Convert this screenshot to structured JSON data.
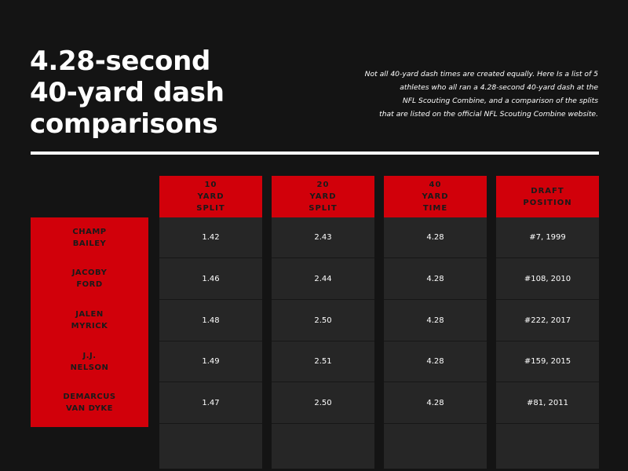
{
  "title_lines": [
    "4.28-second",
    "40-yard dash",
    "comparisons"
  ],
  "description_lines": [
    "Not all 40-yard dash times are created equally. Here Is a list of 5",
    "athletes who all ran a 4.28-second 40-yard dash at the",
    "NFL Scouting Combine, and a comparison of the splits",
    "that are listed  on the official NFL Scouting Combine website."
  ],
  "colors": {
    "background": "#141414",
    "accent_red": "#d1000a",
    "cell_bg": "#262626",
    "text_white": "#ffffff",
    "text_dark": "#1a1a1a"
  },
  "chart_data": {
    "type": "table",
    "columns": [
      {
        "lines": [
          "10",
          "YARD",
          "SPLIT"
        ]
      },
      {
        "lines": [
          "20",
          "YARD",
          "SPLIT"
        ]
      },
      {
        "lines": [
          "40",
          "YARD",
          "TIME"
        ]
      },
      {
        "lines": [
          "DRAFT",
          "POSITION"
        ]
      }
    ],
    "rows": [
      {
        "name_lines": [
          "CHAMP",
          "BAILEY"
        ],
        "values": [
          "1.42",
          "2.43",
          "4.28",
          "#7, 1999"
        ]
      },
      {
        "name_lines": [
          "JACOBY",
          "FORD"
        ],
        "values": [
          "1.46",
          "2.44",
          "4.28",
          "#108, 2010"
        ]
      },
      {
        "name_lines": [
          "JALEN",
          "MYRICK"
        ],
        "values": [
          "1.48",
          "2.50",
          "4.28",
          "#222, 2017"
        ]
      },
      {
        "name_lines": [
          "J.J.",
          "NELSON"
        ],
        "values": [
          "1.49",
          "2.51",
          "4.28",
          "#159, 2015"
        ]
      },
      {
        "name_lines": [
          "DEMARCUS",
          "VAN DYKE"
        ],
        "values": [
          "1.47",
          "2.50",
          "4.28",
          "#81, 2011"
        ]
      }
    ]
  }
}
